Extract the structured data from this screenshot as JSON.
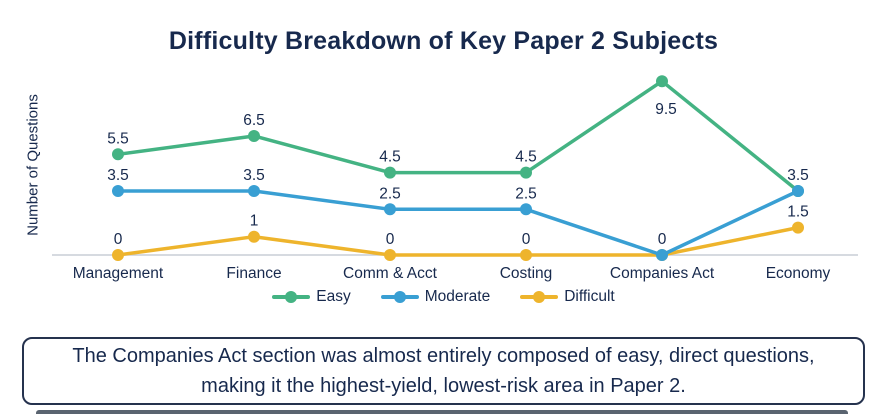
{
  "title": "Difficulty Breakdown of Key Paper 2 Subjects",
  "chart_data": {
    "type": "line",
    "categories": [
      "Management",
      "Finance",
      "Comm & Acct",
      "Costing",
      "Companies Act",
      "Economy"
    ],
    "series": [
      {
        "name": "Easy",
        "color": "#44b383",
        "values": [
          5.5,
          6.5,
          4.5,
          4.5,
          9.5,
          3.5
        ]
      },
      {
        "name": "Moderate",
        "color": "#399fd3",
        "values": [
          3.5,
          3.5,
          2.5,
          2.5,
          0,
          3.5
        ]
      },
      {
        "name": "Difficult",
        "color": "#eeb42c",
        "values": [
          0,
          1,
          0,
          0,
          0,
          1.5
        ]
      }
    ],
    "title": "Difficulty Breakdown of Key Paper 2 Subjects",
    "xlabel": "",
    "ylabel": "Number of Questions",
    "ylim": [
      0,
      10
    ],
    "grid": false,
    "legend_position": "bottom",
    "value_labels": true
  },
  "callout": {
    "text": "The Companies Act section was almost entirely composed of easy, direct questions, making it the highest-yield, lowest-risk area in Paper 2."
  },
  "colors": {
    "title_text": "#17294d",
    "label_text": "#17294d",
    "axis_line": "#c9ced6",
    "callout_border": "#25324e",
    "bottom_bar": "#5a6470"
  }
}
